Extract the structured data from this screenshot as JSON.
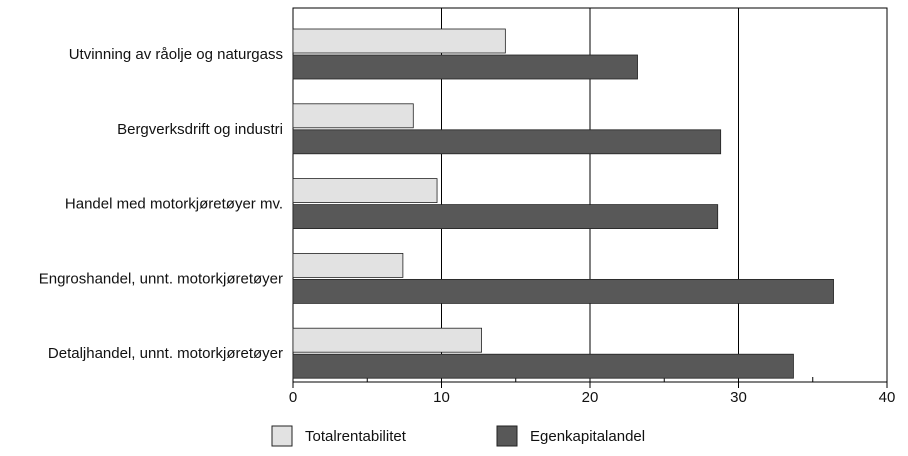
{
  "chart_data": {
    "type": "hbar",
    "categories": [
      "Utvinning av råolje og naturgass",
      "Bergverksdrift og industri",
      "Handel med motorkjøretøyer mv.",
      "Engroshandel, unnt. motorkjøretøyer",
      "Detaljhandel, unnt. motorkjøretøyer"
    ],
    "series": [
      {
        "name": "Totalrentabilitet",
        "color": "#e2e2e2",
        "values": [
          14.3,
          8.1,
          9.7,
          7.4,
          12.7
        ]
      },
      {
        "name": "Egenkapitalandel",
        "color": "#585858",
        "values": [
          23.2,
          28.8,
          28.6,
          36.4,
          33.7
        ]
      }
    ],
    "xlim": [
      0,
      40
    ],
    "xticks": [
      0,
      10,
      20,
      30,
      40
    ],
    "minor_xticks": [
      5,
      15,
      25,
      35
    ],
    "grid": true
  }
}
